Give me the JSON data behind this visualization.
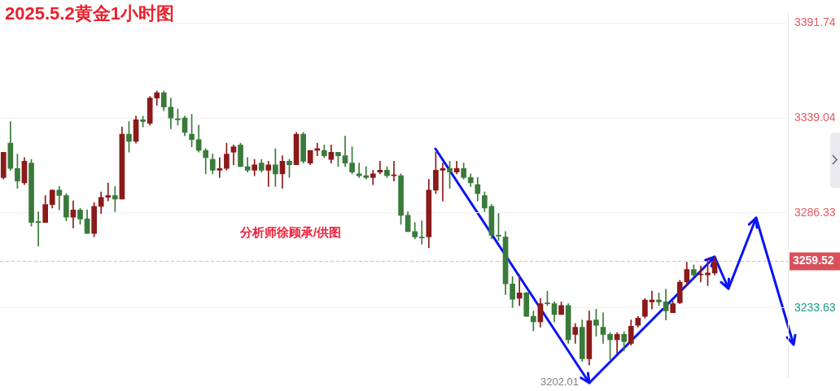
{
  "chart_data": {
    "type": "candlestick",
    "title": "2025.5.2黄金1小时图",
    "annotations": [
      "分析师徐顾承/供图",
      "3202.01"
    ],
    "categories": [
      null,
      null,
      null,
      null,
      null,
      null,
      null,
      null,
      null,
      null,
      null,
      null,
      null,
      null,
      null,
      null,
      null,
      null,
      null,
      null,
      null,
      null,
      null,
      null,
      null,
      null,
      null,
      null,
      null,
      null,
      null,
      null,
      null,
      null,
      null,
      null,
      null,
      null,
      null,
      null,
      null,
      null,
      null,
      null,
      null,
      null,
      null,
      null,
      null,
      null,
      null,
      null,
      null,
      null,
      null,
      null,
      null,
      null,
      null,
      null,
      null,
      null,
      null,
      null,
      null,
      null,
      null,
      null,
      null,
      null,
      null,
      null,
      null,
      null,
      null,
      null,
      null,
      null,
      null,
      null,
      null,
      null,
      null,
      null,
      null,
      null,
      null,
      null,
      null,
      null,
      null,
      null,
      null,
      null,
      null,
      null,
      null,
      null,
      null,
      null,
      null,
      null,
      null,
      null,
      null,
      null,
      null,
      null,
      null,
      null,
      null,
      null,
      null
    ],
    "ohlc": [
      [
        3306,
        3320,
        3305,
        3320
      ],
      [
        3325,
        3337,
        3310,
        3311
      ],
      [
        3311,
        3319,
        3300,
        3304
      ],
      [
        3303,
        3317,
        3302,
        3315
      ],
      [
        3314,
        3316,
        3279,
        3281
      ],
      [
        3281.5,
        3287,
        3268,
        3281
      ],
      [
        3281,
        3296,
        3281,
        3291
      ],
      [
        3291,
        3299,
        3289,
        3299
      ],
      [
        3299,
        3301,
        3288,
        3296
      ],
      [
        3296,
        3297,
        3282,
        3284
      ],
      [
        3284,
        3293,
        3278,
        3288
      ],
      [
        3288,
        3289,
        3280,
        3283
      ],
      [
        3283,
        3288,
        3275,
        3275
      ],
      [
        3275,
        3292,
        3273,
        3290
      ],
      [
        3290,
        3298,
        3286,
        3295
      ],
      [
        3295,
        3303,
        3293,
        3296
      ],
      [
        3296,
        3301,
        3287,
        3294
      ],
      [
        3294,
        3334,
        3294,
        3330
      ],
      [
        3330,
        3337,
        3320,
        3326
      ],
      [
        3326,
        3340,
        3325,
        3338
      ],
      [
        3338,
        3340,
        3334,
        3337
      ],
      [
        3336,
        3351,
        3335,
        3350
      ],
      [
        3350,
        3354,
        3346,
        3353
      ],
      [
        3353,
        3354,
        3343,
        3345
      ],
      [
        3345,
        3350,
        3333,
        3339
      ],
      [
        3338.5,
        3344,
        3335,
        3338
      ],
      [
        3339,
        3340,
        3329,
        3331
      ],
      [
        3330,
        3341,
        3323,
        3327
      ],
      [
        3327,
        3335,
        3320,
        3321
      ],
      [
        3321,
        3322,
        3308,
        3317
      ],
      [
        3316,
        3319,
        3308,
        3310
      ],
      [
        3310,
        3317,
        3306,
        3311
      ],
      [
        3311,
        3325,
        3310,
        3319
      ],
      [
        3320,
        3324,
        3313,
        3323
      ],
      [
        3324,
        3325,
        3312,
        3312
      ],
      [
        3312,
        3317,
        3309,
        3310
      ],
      [
        3310,
        3316,
        3307,
        3313
      ],
      [
        3314,
        3316,
        3309,
        3310
      ],
      [
        3310,
        3315,
        3301,
        3313
      ],
      [
        3313,
        3322,
        3301,
        3308
      ],
      [
        3308,
        3318,
        3300,
        3315
      ],
      [
        3315,
        3316,
        3306,
        3313
      ],
      [
        3313,
        3331,
        3313,
        3330
      ],
      [
        3330,
        3331,
        3314,
        3315
      ],
      [
        3314,
        3321,
        3313,
        3321
      ],
      [
        3321,
        3325,
        3318,
        3322
      ],
      [
        3321,
        3324,
        3317,
        3318
      ],
      [
        3316,
        3324,
        3314,
        3320
      ],
      [
        3320,
        3320,
        3312,
        3318
      ],
      [
        3318,
        3329,
        3312,
        3314
      ],
      [
        3314,
        3323,
        3308,
        3309
      ],
      [
        3308,
        3314,
        3306,
        3307
      ],
      [
        3307,
        3312,
        3305,
        3306
      ],
      [
        3306,
        3310,
        3302,
        3308
      ],
      [
        3309,
        3315,
        3308,
        3310
      ],
      [
        3310,
        3312,
        3306,
        3307
      ],
      [
        3307,
        3315,
        3304,
        3307.5
      ],
      [
        3307,
        3308,
        3280,
        3285
      ],
      [
        3285,
        3287,
        3276,
        3276
      ],
      [
        3276,
        3281,
        3272,
        3273
      ],
      [
        3273,
        3282,
        3269,
        3272.5
      ],
      [
        3273,
        3305,
        3267,
        3299
      ],
      [
        3299,
        3320,
        3297,
        3310
      ],
      [
        3310,
        3314,
        3293,
        3311
      ],
      [
        3311,
        3315,
        3300,
        3309
      ],
      [
        3309,
        3315,
        3308,
        3311
      ],
      [
        3311,
        3314,
        3305,
        3306
      ],
      [
        3306,
        3308,
        3301,
        3303
      ],
      [
        3302,
        3306,
        3293,
        3297
      ],
      [
        3296,
        3298,
        3287,
        3289
      ],
      [
        3290,
        3291,
        3272,
        3274
      ],
      [
        3274,
        3286,
        3271,
        3273.5
      ],
      [
        3273,
        3276,
        3241,
        3247
      ],
      [
        3247,
        3251,
        3234,
        3238.5
      ],
      [
        3239,
        3252,
        3235,
        3242
      ],
      [
        3242,
        3242.5,
        3229,
        3229
      ],
      [
        3229,
        3232,
        3221,
        3226
      ],
      [
        3226,
        3239,
        3223,
        3236
      ],
      [
        3236.5,
        3243,
        3235,
        3236
      ],
      [
        3236,
        3237,
        3226,
        3230
      ],
      [
        3230,
        3237,
        3230,
        3235
      ],
      [
        3235,
        3236,
        3214,
        3216
      ],
      [
        3219,
        3225,
        3214,
        3223
      ],
      [
        3223,
        3227,
        3204,
        3205.5
      ],
      [
        3205.5,
        3232,
        3202.01,
        3226.6
      ],
      [
        3227,
        3233,
        3218,
        3224
      ],
      [
        3223,
        3231,
        3214,
        3219
      ],
      [
        3219,
        3220,
        3205,
        3216
      ],
      [
        3216,
        3220,
        3208.5,
        3219
      ],
      [
        3219,
        3220.5,
        3210,
        3215
      ],
      [
        3214,
        3227,
        3213,
        3223.5
      ],
      [
        3224,
        3229,
        3223,
        3228
      ],
      [
        3229,
        3239,
        3228,
        3238
      ],
      [
        3237,
        3243,
        3233,
        3238
      ],
      [
        3238,
        3242,
        3235,
        3237
      ],
      [
        3237,
        3244,
        3227,
        3232
      ],
      [
        3231,
        3237.5,
        3231,
        3236
      ],
      [
        3236.5,
        3249,
        3236,
        3248
      ],
      [
        3248,
        3259,
        3246,
        3255
      ],
      [
        3255,
        3257.5,
        3251,
        3252
      ],
      [
        3252,
        3257,
        3248,
        3252.5
      ],
      [
        3252,
        3261,
        3246,
        3253
      ],
      [
        3253,
        3262,
        3252,
        3259.52
      ],
      null,
      null,
      null,
      null,
      null,
      null,
      null,
      null,
      null,
      null
    ],
    "colors": [
      "#8b1a1a",
      "#3a7a3a",
      "#3a7a3a",
      "#8b1a1a",
      "#3a7a3a",
      "#3a7a3a",
      "#8b1a1a",
      "#8b1a1a",
      "#3a7a3a",
      "#3a7a3a",
      "#8b1a1a",
      "#3a7a3a",
      "#3a7a3a",
      "#8b1a1a",
      "#8b1a1a",
      "#8b1a1a",
      "#3a7a3a",
      "#8b1a1a",
      "#3a7a3a",
      "#8b1a1a",
      "#3a7a3a",
      "#8b1a1a",
      "#8b1a1a",
      "#3a7a3a",
      "#3a7a3a",
      "#3a7a3a",
      "#3a7a3a",
      "#3a7a3a",
      "#3a7a3a",
      "#3a7a3a",
      "#3a7a3a",
      "#8b1a1a",
      "#8b1a1a",
      "#8b1a1a",
      "#3a7a3a",
      "#3a7a3a",
      "#8b1a1a",
      "#3a7a3a",
      "#8b1a1a",
      "#3a7a3a",
      "#8b1a1a",
      "#3a7a3a",
      "#8b1a1a",
      "#3a7a3a",
      "#8b1a1a",
      "#8b1a1a",
      "#3a7a3a",
      "#8b1a1a",
      "#3a7a3a",
      "#3a7a3a",
      "#3a7a3a",
      "#3a7a3a",
      "#3a7a3a",
      "#8b1a1a",
      "#8b1a1a",
      "#3a7a3a",
      "#8b1a1a",
      "#3a7a3a",
      "#3a7a3a",
      "#3a7a3a",
      "#3a7a3a",
      "#8b1a1a",
      "#8b1a1a",
      "#8b1a1a",
      "#3a7a3a",
      "#8b1a1a",
      "#3a7a3a",
      "#3a7a3a",
      "#3a7a3a",
      "#3a7a3a",
      "#3a7a3a",
      "#3a7a3a",
      "#3a7a3a",
      "#3a7a3a",
      "#8b1a1a",
      "#3a7a3a",
      "#3a7a3a",
      "#8b1a1a",
      "#3a7a3a",
      "#3a7a3a",
      "#8b1a1a",
      "#3a7a3a",
      "#8b1a1a",
      "#3a7a3a",
      "#8b1a1a",
      "#3a7a3a",
      "#3a7a3a",
      "#3a7a3a",
      "#8b1a1a",
      "#3a7a3a",
      "#8b1a1a",
      "#8b1a1a",
      "#8b1a1a",
      "#8b1a1a",
      "#3a7a3a",
      "#3a7a3a",
      "#8b1a1a",
      "#8b1a1a",
      "#8b1a1a",
      "#3a7a3a",
      "#8b1a1a",
      "#8b1a1a",
      "#8b1a1a",
      null,
      null,
      null,
      null,
      null,
      null,
      null,
      null,
      null,
      null
    ],
    "ylim": [
      3195,
      3397
    ],
    "yticks": [
      3233.63,
      3286.33,
      3339.04,
      3391.74
    ],
    "ref_lines": [
      {
        "axis": "y",
        "value": 3259.52,
        "label": "3259.52",
        "color": "#d9505a",
        "line_style": "dashed"
      }
    ],
    "grid": "y",
    "legend": false,
    "tick_labels": "y"
  }
}
